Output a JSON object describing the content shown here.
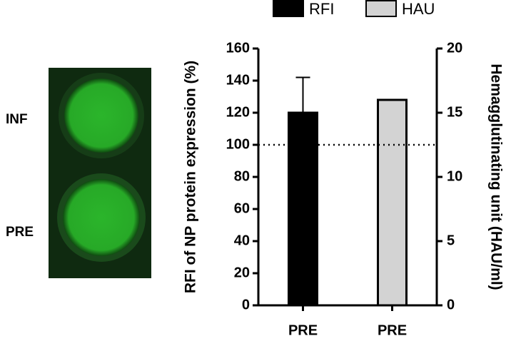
{
  "image": {
    "labels": [
      "INF",
      "PRE"
    ]
  },
  "chart_data": {
    "type": "bar",
    "ylabel": "RFI of NP protein expression (%)",
    "y2label": "Hemagglutinating unit (HAU/ml)",
    "categories": [
      "PRE",
      "PRE"
    ],
    "series": [
      {
        "name": "RFI",
        "color": "#000000",
        "values": [
          120,
          null
        ],
        "errors": [
          22,
          null
        ]
      },
      {
        "name": "HAU",
        "color": "#d3d3d3",
        "values": [
          null,
          16
        ],
        "axis": "y2"
      }
    ],
    "ylim": [
      0,
      160
    ],
    "yticks": [
      0,
      20,
      40,
      60,
      80,
      100,
      120,
      140,
      160
    ],
    "y2lim": [
      0,
      20
    ],
    "y2ticks": [
      0,
      5,
      10,
      15,
      20
    ],
    "refline": 100,
    "legend": "top"
  }
}
